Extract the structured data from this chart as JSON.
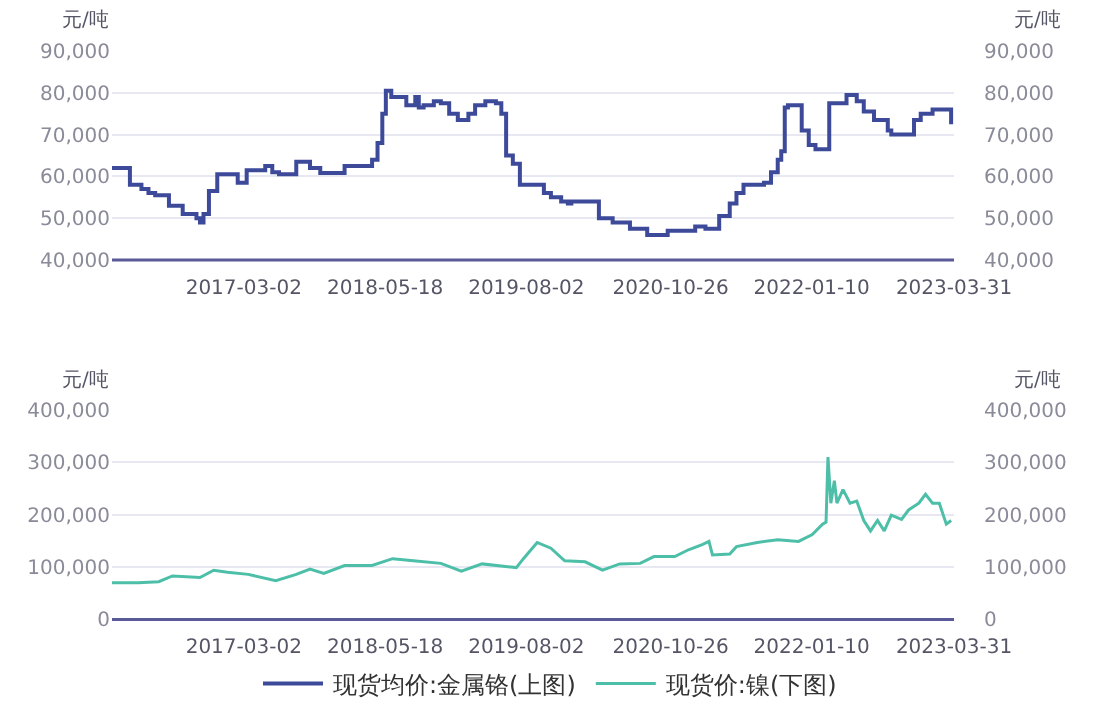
{
  "chart_data": [
    {
      "type": "step",
      "ylabel": "元/吨",
      "y2label": "元/吨",
      "legend": "bottom",
      "grid": "y",
      "xlim": [
        "2016-01-15",
        "2023-03-31"
      ],
      "xticks": [
        "2017-03-02",
        "2018-05-18",
        "2019-08-02",
        "2020-10-26",
        "2022-01-10",
        "2023-03-31"
      ],
      "ylim": [
        40000,
        90000
      ],
      "yticks": [
        {
          "value": 40000,
          "label": "40,000"
        },
        {
          "value": 50000,
          "label": "50,000"
        },
        {
          "value": 60000,
          "label": "60,000"
        },
        {
          "value": 70000,
          "label": "70,000"
        },
        {
          "value": 80000,
          "label": "80,000"
        },
        {
          "value": 90000,
          "label": "90,000"
        }
      ],
      "y2lim": [
        40000,
        90000
      ],
      "y2ticks": [
        {
          "value": 40000,
          "label": "40,000"
        },
        {
          "value": 50000,
          "label": "50,000"
        },
        {
          "value": 60000,
          "label": "60,000"
        },
        {
          "value": 70000,
          "label": "70,000"
        },
        {
          "value": 80000,
          "label": "80,000"
        },
        {
          "value": 90000,
          "label": "90,000"
        }
      ],
      "series": [
        {
          "name": "现货均价:金属铬(上图)",
          "color": "#3d4a99",
          "x": [
            "2016-01-15",
            "2016-03-11",
            "2016-04-16",
            "2016-05-08",
            "2016-05-29",
            "2016-07-11",
            "2016-08-23",
            "2016-10-05",
            "2016-10-16",
            "2016-10-27",
            "2016-11-13",
            "2016-12-09",
            "2017-02-11",
            "2017-03-11",
            "2017-05-08",
            "2017-05-30",
            "2017-06-20",
            "2017-08-13",
            "2017-09-25",
            "2017-10-27",
            "2018-01-11",
            "2018-04-07",
            "2018-04-24",
            "2018-05-09",
            "2018-05-20",
            "2018-06-06",
            "2018-07-23",
            "2018-08-20",
            "2018-08-31",
            "2018-09-15",
            "2018-10-17",
            "2018-11-08",
            "2018-12-04",
            "2018-12-31",
            "2019-02-02",
            "2019-02-23",
            "2019-03-27",
            "2019-04-29",
            "2019-05-16",
            "2019-05-31",
            "2019-06-21",
            "2019-07-13",
            "2019-09-26",
            "2019-10-18",
            "2019-11-19",
            "2019-12-10",
            "2019-12-21",
            "2020-03-16",
            "2020-04-28",
            "2020-06-21",
            "2020-08-14",
            "2020-10-17",
            "2021-01-11",
            "2021-02-12",
            "2021-03-27",
            "2021-04-29",
            "2021-05-20",
            "2021-06-11",
            "2021-08-14",
            "2021-09-05",
            "2021-09-26",
            "2021-10-07",
            "2021-10-18",
            "2021-10-28",
            "2021-12-10",
            "2022-01-01",
            "2022-01-22",
            "2022-03-06",
            "2022-04-29",
            "2022-05-31",
            "2022-06-22",
            "2022-07-24",
            "2022-09-05",
            "2022-09-16",
            "2022-11-26",
            "2022-12-17",
            "2023-01-23",
            "2023-03-13",
            "2023-03-22"
          ],
          "values": [
            62000,
            58000,
            57000,
            56000,
            55500,
            53000,
            51000,
            50000,
            49000,
            51000,
            56500,
            60500,
            58500,
            61500,
            62500,
            61000,
            60500,
            63500,
            62000,
            60800,
            62500,
            64000,
            68000,
            75000,
            80500,
            79000,
            77000,
            79000,
            76500,
            77000,
            78000,
            77500,
            75000,
            73500,
            75000,
            77000,
            78000,
            77500,
            75000,
            65000,
            63000,
            58000,
            56000,
            55000,
            54000,
            53500,
            54000,
            50000,
            49000,
            47500,
            46000,
            47000,
            48000,
            47500,
            50500,
            53500,
            56000,
            58000,
            58500,
            61000,
            64000,
            66000,
            76500,
            77000,
            71000,
            67500,
            66500,
            77500,
            79500,
            78000,
            75500,
            73500,
            71000,
            70000,
            73500,
            75000,
            76000,
            76000,
            72500
          ]
        }
      ]
    },
    {
      "type": "line",
      "ylabel": "元/吨",
      "y2label": "元/吨",
      "legend": "bottom",
      "grid": "y",
      "xlim": [
        "2016-01-15",
        "2023-03-31"
      ],
      "xticks": [
        "2017-03-02",
        "2018-05-18",
        "2019-08-02",
        "2020-10-26",
        "2022-01-10",
        "2023-03-31"
      ],
      "ylim": [
        0,
        400000
      ],
      "yticks": [
        0,
        {
          "value": 100000,
          "label": "100,000"
        },
        {
          "value": 200000,
          "label": "200,000"
        },
        {
          "value": 300000,
          "label": "300,000"
        },
        {
          "value": 400000,
          "label": "400,000"
        }
      ],
      "y2lim": [
        0,
        400000
      ],
      "y2ticks": [
        0,
        {
          "value": 100000,
          "label": "100,000"
        },
        {
          "value": 200000,
          "label": "200,000"
        },
        {
          "value": 300000,
          "label": "300,000"
        },
        {
          "value": 400000,
          "label": "400,000"
        }
      ],
      "series": [
        {
          "name": "现货价:镍(下图)",
          "color": "#4dbfa8",
          "x": [
            "2016-01-15",
            "2016-04-06",
            "2016-06-09",
            "2016-07-22",
            "2016-10-16",
            "2016-11-28",
            "2017-01-10",
            "2017-03-16",
            "2017-06-10",
            "2017-08-13",
            "2017-09-25",
            "2017-11-07",
            "2018-01-11",
            "2018-04-07",
            "2018-06-10",
            "2018-08-14",
            "2018-11-08",
            "2019-01-11",
            "2019-03-17",
            "2019-07-02",
            "2019-07-24",
            "2019-09-05",
            "2019-10-18",
            "2019-11-30",
            "2020-02-02",
            "2020-03-27",
            "2020-05-20",
            "2020-07-23",
            "2020-09-04",
            "2020-11-08",
            "2020-12-21",
            "2021-02-02",
            "2021-02-23",
            "2021-03-06",
            "2021-04-29",
            "2021-05-20",
            "2021-07-24",
            "2021-09-26",
            "2021-11-30",
            "2022-01-12",
            "2022-02-13",
            "2022-02-24",
            "2022-03-02",
            "2022-03-11",
            "2022-03-22",
            "2022-03-30",
            "2022-04-18",
            "2022-05-10",
            "2022-05-31",
            "2022-06-22",
            "2022-07-13",
            "2022-08-04",
            "2022-08-25",
            "2022-09-16",
            "2022-10-18",
            "2022-11-09",
            "2022-12-11",
            "2023-01-01",
            "2023-01-23",
            "2023-02-13",
            "2023-03-07",
            "2023-03-22"
          ],
          "values": [
            70000,
            70000,
            72000,
            83000,
            80000,
            94000,
            90000,
            86000,
            74000,
            86000,
            96000,
            88000,
            103000,
            103000,
            116000,
            112000,
            107000,
            92000,
            106000,
            99000,
            116000,
            147000,
            136000,
            112000,
            110000,
            94000,
            106000,
            107000,
            120000,
            120000,
            133000,
            143000,
            149000,
            123000,
            125000,
            139000,
            147000,
            152000,
            149000,
            162000,
            182000,
            186000,
            310000,
            222000,
            265000,
            222000,
            248000,
            222000,
            226000,
            189000,
            169000,
            189000,
            169000,
            199000,
            191000,
            209000,
            222000,
            239000,
            222000,
            222000,
            182000,
            189000
          ]
        }
      ]
    }
  ]
}
